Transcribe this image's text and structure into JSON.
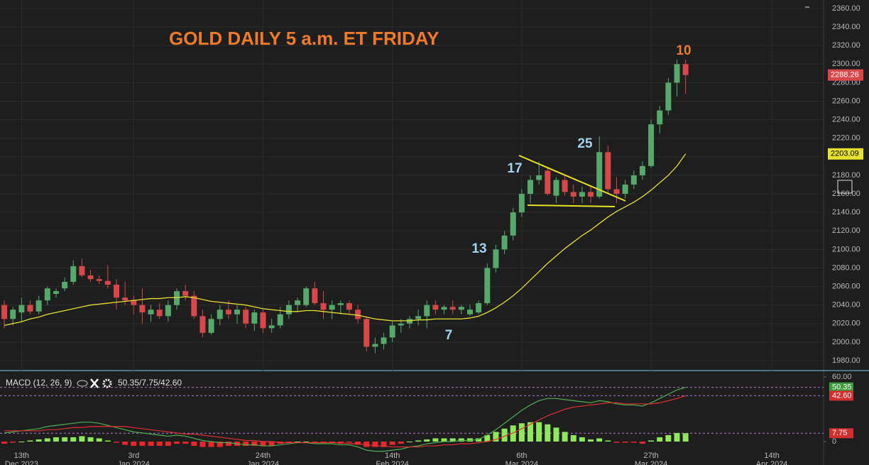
{
  "chart_data": [
    {
      "type": "candlestick",
      "title": "GOLD DAILY 5 a.m. ET FRIDAY",
      "x": [
        0,
        1,
        2,
        3,
        4,
        5,
        6,
        7,
        8,
        9,
        10,
        11,
        12,
        13,
        14,
        15,
        16,
        17,
        18,
        19,
        20,
        21,
        22,
        23,
        24,
        25,
        26,
        27,
        28,
        29,
        30,
        31,
        32,
        33,
        34,
        35,
        36,
        37,
        38,
        39,
        40,
        41,
        42,
        43,
        44,
        45,
        46,
        47,
        48,
        49,
        50,
        51,
        52,
        53,
        54,
        55,
        56,
        57,
        58,
        59,
        60,
        61,
        62,
        63,
        64,
        65,
        66,
        67,
        68,
        69,
        70,
        71,
        72,
        73,
        74,
        75,
        76,
        77,
        78,
        79
      ],
      "open": [
        2040,
        2025,
        2032,
        2040,
        2033,
        2045,
        2052,
        2058,
        2065,
        2082,
        2072,
        2068,
        2066,
        2062,
        2048,
        2045,
        2040,
        2030,
        2035,
        2028,
        2040,
        2055,
        2050,
        2028,
        2010,
        2025,
        2035,
        2030,
        2035,
        2020,
        2032,
        2015,
        2018,
        2030,
        2040,
        2040,
        2058,
        2042,
        2035,
        2040,
        2042,
        2035,
        2025,
        1995,
        1998,
        2005,
        2018,
        2020,
        2025,
        2028,
        2040,
        2035,
        2038,
        2035,
        2030,
        2032,
        2042,
        2080,
        2100,
        2115,
        2140,
        2160,
        2175,
        2185,
        2158,
        2175,
        2162,
        2157,
        2162,
        2157,
        2205,
        2165,
        2160,
        2170,
        2180,
        2190,
        2235,
        2250,
        2280,
        2300
      ],
      "high": [
        2045,
        2038,
        2048,
        2045,
        2050,
        2060,
        2058,
        2070,
        2088,
        2090,
        2078,
        2072,
        2083,
        2068,
        2065,
        2050,
        2058,
        2040,
        2042,
        2045,
        2058,
        2062,
        2055,
        2035,
        2030,
        2040,
        2045,
        2040,
        2038,
        2035,
        2035,
        2025,
        2038,
        2045,
        2048,
        2060,
        2065,
        2055,
        2045,
        2045,
        2045,
        2040,
        2028,
        2005,
        2010,
        2022,
        2025,
        2028,
        2035,
        2045,
        2045,
        2040,
        2045,
        2040,
        2040,
        2045,
        2085,
        2105,
        2120,
        2145,
        2165,
        2180,
        2195,
        2188,
        2178,
        2180,
        2170,
        2168,
        2168,
        2222,
        2212,
        2178,
        2175,
        2185,
        2195,
        2240,
        2255,
        2285,
        2305,
        2305
      ],
      "low": [
        2015,
        2018,
        2022,
        2030,
        2030,
        2040,
        2048,
        2055,
        2062,
        2070,
        2065,
        2063,
        2058,
        2035,
        2040,
        2030,
        2020,
        2022,
        2025,
        2022,
        2035,
        2045,
        2025,
        2005,
        2008,
        2018,
        2025,
        2020,
        2015,
        2012,
        2010,
        2010,
        2015,
        2025,
        2032,
        2038,
        2040,
        2025,
        2025,
        2030,
        2030,
        2020,
        1990,
        1988,
        1992,
        2000,
        2010,
        2015,
        2018,
        2015,
        2030,
        2030,
        2030,
        2030,
        2028,
        2030,
        2040,
        2075,
        2095,
        2110,
        2135,
        2150,
        2170,
        2158,
        2150,
        2158,
        2150,
        2150,
        2150,
        2155,
        2160,
        2150,
        2155,
        2165,
        2175,
        2188,
        2225,
        2245,
        2265,
        2268
      ],
      "close": [
        2025,
        2035,
        2040,
        2033,
        2045,
        2058,
        2055,
        2065,
        2082,
        2072,
        2068,
        2066,
        2062,
        2048,
        2045,
        2040,
        2032,
        2035,
        2028,
        2040,
        2055,
        2050,
        2028,
        2010,
        2025,
        2035,
        2030,
        2035,
        2020,
        2032,
        2015,
        2018,
        2030,
        2040,
        2045,
        2058,
        2042,
        2035,
        2040,
        2042,
        2035,
        2025,
        1995,
        1998,
        2005,
        2018,
        2020,
        2025,
        2028,
        2040,
        2035,
        2038,
        2035,
        2038,
        2035,
        2042,
        2080,
        2100,
        2115,
        2140,
        2160,
        2175,
        2180,
        2160,
        2175,
        2162,
        2157,
        2162,
        2157,
        2205,
        2165,
        2160,
        2170,
        2180,
        2190,
        2235,
        2250,
        2280,
        2300,
        2288.26
      ],
      "color_up": "#55a96b",
      "color_down": "#d9474a",
      "moving_average": {
        "color": "#e8e030",
        "values": [
          2018,
          2020,
          2022,
          2025,
          2027,
          2030,
          2032,
          2034,
          2036,
          2038,
          2040,
          2041,
          2042,
          2043,
          2044,
          2045,
          2046,
          2047,
          2047,
          2048,
          2048,
          2049,
          2048,
          2046,
          2044,
          2043,
          2042,
          2041,
          2040,
          2038,
          2036,
          2035,
          2034,
          2033,
          2033,
          2034,
          2034,
          2033,
          2032,
          2031,
          2030,
          2029,
          2027,
          2025,
          2024,
          2023,
          2023,
          2023,
          2024,
          2024,
          2025,
          2025,
          2025,
          2025,
          2026,
          2028,
          2032,
          2037,
          2043,
          2050,
          2058,
          2067,
          2076,
          2085,
          2093,
          2101,
          2108,
          2115,
          2121,
          2128,
          2135,
          2141,
          2146,
          2151,
          2157,
          2164,
          2172,
          2180,
          2190,
          2203.09
        ]
      },
      "xlim": [
        -0.5,
        95
      ],
      "xticks": [
        {
          "value": 2,
          "label": "13th"
        },
        {
          "value": 15,
          "label": "3rd"
        },
        {
          "value": 30,
          "label": "24th"
        },
        {
          "value": 45,
          "label": "14th"
        },
        {
          "value": 60,
          "label": "6th"
        },
        {
          "value": 75,
          "label": "27th"
        },
        {
          "value": 89,
          "label": "14th"
        }
      ],
      "xtick_sublabels": [
        "Dec 2023",
        "Jan 2024",
        "Jan 2024",
        "Feb 2024",
        "Mar 2024",
        "Mar 2024",
        "Apr 2024"
      ],
      "ylim": [
        1980,
        2360
      ],
      "yticks": [
        {
          "value": 1980,
          "label": "1980.00"
        },
        {
          "value": 2000,
          "label": "2000.00"
        },
        {
          "value": 2020,
          "label": "2020.00"
        },
        {
          "value": 2040,
          "label": "2040.00"
        },
        {
          "value": 2060,
          "label": "2060.00"
        },
        {
          "value": 2080,
          "label": "2080.00"
        },
        {
          "value": 2100,
          "label": "2100.00"
        },
        {
          "value": 2120,
          "label": "2120.00"
        },
        {
          "value": 2140,
          "label": "2140.00"
        },
        {
          "value": 2160,
          "label": "2160.00"
        },
        {
          "value": 2180,
          "label": "2180.00"
        },
        {
          "value": 2200,
          "label": "2200.00"
        },
        {
          "value": 2220,
          "label": "2220.00"
        },
        {
          "value": 2240,
          "label": "2240.00"
        },
        {
          "value": 2260,
          "label": "2260.00"
        },
        {
          "value": 2280,
          "label": "2280.00"
        },
        {
          "value": 2300,
          "label": "2300.00"
        },
        {
          "value": 2320,
          "label": "2320.00"
        },
        {
          "value": 2340,
          "label": "2340.00"
        },
        {
          "value": 2360,
          "label": "2360.00"
        }
      ],
      "grid": true,
      "annotations": [
        "7",
        "13",
        "17",
        "25",
        "10"
      ]
    },
    {
      "type": "macd",
      "name": "MACD (12, 26, 9)",
      "values_text": "50.35/7.75/42.60",
      "ylim": [
        -6,
        60
      ],
      "yticks": [
        {
          "value": 60,
          "label": "60.00"
        },
        0
      ],
      "series": [
        {
          "color": "#4caf50",
          "values": [
            8,
            9,
            10,
            11,
            12,
            14,
            15,
            16,
            17,
            18,
            18,
            17,
            15,
            13,
            11,
            9,
            8,
            7,
            6,
            5,
            6,
            5,
            3,
            1,
            0,
            -1,
            -1,
            -2,
            -3,
            -3,
            -4,
            -4,
            -3,
            -2,
            -1,
            -1,
            -2,
            -2,
            -2,
            -3,
            -3,
            -5,
            -8,
            -9,
            -9,
            -8,
            -7,
            -5,
            -4,
            -2,
            -1,
            0,
            0,
            1,
            1,
            2,
            6,
            11,
            17,
            23,
            29,
            34,
            38,
            40,
            40,
            39,
            38,
            37,
            36,
            38,
            37,
            35,
            34,
            34,
            33,
            36,
            40,
            44,
            48,
            50.35
          ]
        },
        {
          "color": "#e03030",
          "values": [
            10,
            10,
            10,
            10,
            10,
            11,
            11,
            12,
            13,
            13,
            14,
            14,
            14,
            14,
            14,
            13,
            12,
            11,
            10,
            9,
            8,
            7,
            7,
            6,
            5,
            4,
            3,
            2,
            1,
            1,
            0,
            0,
            -1,
            -1,
            -1,
            -1,
            -1,
            -1,
            -1,
            -1,
            -2,
            -2,
            -3,
            -4,
            -4,
            -5,
            -5,
            -5,
            -5,
            -4,
            -4,
            -3,
            -3,
            -2,
            -2,
            -1,
            0,
            2,
            5,
            8,
            12,
            16,
            20,
            24,
            27,
            30,
            32,
            33,
            34,
            35,
            36,
            36,
            35,
            35,
            35,
            35,
            36,
            38,
            40,
            42.6
          ]
        }
      ],
      "histogram": {
        "color_up": "#8fe85a",
        "color_down": "#e8262b",
        "values": [
          -2,
          -1,
          0,
          1,
          2,
          3,
          4,
          4,
          4,
          5,
          4,
          3,
          1,
          -1,
          -3,
          -4,
          -4,
          -4,
          -4,
          -4,
          -2,
          -2,
          -4,
          -5,
          -5,
          -5,
          -4,
          -4,
          -4,
          -4,
          -4,
          -4,
          -2,
          -1,
          0,
          0,
          -1,
          -1,
          -1,
          -2,
          -1,
          -3,
          -5,
          -5,
          -5,
          -3,
          -2,
          0,
          1,
          2,
          3,
          3,
          3,
          3,
          3,
          3,
          6,
          9,
          12,
          15,
          17,
          18,
          18,
          16,
          13,
          9,
          6,
          4,
          2,
          3,
          1,
          -1,
          -1,
          -1,
          -2,
          1,
          4,
          6,
          8,
          7.75
        ]
      },
      "markers": [
        {
          "value": 50.35,
          "label": "50.35",
          "color": "#3d9a3d"
        },
        {
          "value": 42.6,
          "label": "42.60",
          "color": "#d03030"
        },
        {
          "value": 7.75,
          "label": "7.75",
          "color": "#d03030"
        }
      ]
    }
  ]
}
